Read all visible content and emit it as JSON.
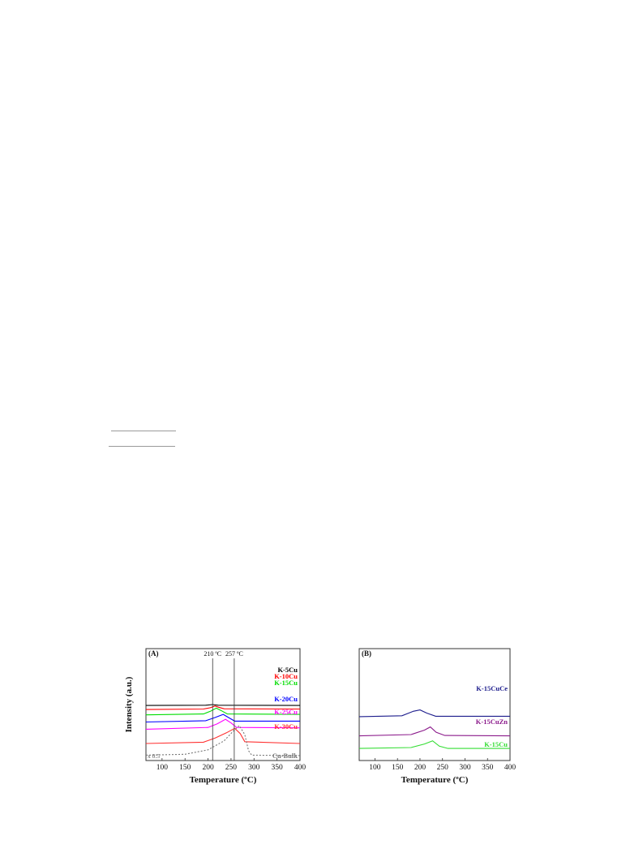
{
  "chart_data": [
    {
      "type": "line",
      "title": "",
      "panel_label": "(A)",
      "xlabel": "Temperature (ºC)",
      "ylabel": "Intensity (a.u.)",
      "xlim": [
        65,
        400
      ],
      "xticks": [
        100,
        150,
        200,
        250,
        300,
        350,
        400
      ],
      "yticks": "none",
      "grid": false,
      "legend": "labels-right",
      "annotations": [
        {
          "text": "210 ºC",
          "x": 210
        },
        {
          "text": "257 ºC",
          "x": 257
        },
        {
          "text": "x 0.5",
          "position": "bottom-left"
        }
      ],
      "series": [
        {
          "name": "K-5Cu",
          "color": "#000000",
          "style": "solid",
          "points": [
            [
              65,
              127
            ],
            [
              195,
              126.5
            ],
            [
              210,
              125
            ],
            [
              222,
              126.5
            ],
            [
              400,
              127
            ]
          ]
        },
        {
          "name": "K-10Cu",
          "color": "#ff0000",
          "style": "solid",
          "points": [
            [
              65,
              136
            ],
            [
              190,
              135
            ],
            [
              205,
              132
            ],
            [
              215,
              128
            ],
            [
              223,
              131
            ],
            [
              235,
              134.5
            ],
            [
              400,
              135
            ]
          ]
        },
        {
          "name": "K-15Cu",
          "color": "#00dd00",
          "style": "solid",
          "points": [
            [
              65,
              148
            ],
            [
              190,
              146
            ],
            [
              205,
              140
            ],
            [
              218,
              133
            ],
            [
              228,
              138
            ],
            [
              242,
              146
            ],
            [
              400,
              147
            ]
          ]
        },
        {
          "name": "K-20Cu",
          "color": "#0000ff",
          "style": "solid",
          "points": [
            [
              65,
              164
            ],
            [
              195,
              161
            ],
            [
              215,
              154
            ],
            [
              233,
              147
            ],
            [
              248,
              156
            ],
            [
              258,
              162
            ],
            [
              400,
              162
            ]
          ]
        },
        {
          "name": "K-25Cu",
          "color": "#ff00ff",
          "style": "solid",
          "points": [
            [
              65,
              180
            ],
            [
              200,
              176
            ],
            [
              220,
              168
            ],
            [
              238,
              158
            ],
            [
              250,
              166
            ],
            [
              262,
              176
            ],
            [
              400,
              177
            ]
          ]
        },
        {
          "name": "K-30Cu",
          "color": "#ff3030",
          "style": "solid",
          "points": [
            [
              65,
              212
            ],
            [
              190,
              209
            ],
            [
              215,
              200
            ],
            [
              240,
              188
            ],
            [
              258,
              178
            ],
            [
              270,
              190
            ],
            [
              280,
              208
            ],
            [
              400,
              212
            ]
          ]
        },
        {
          "name": "Cu-Bulk",
          "color": "#777777",
          "style": "dotted",
          "points": [
            [
              65,
              238
            ],
            [
              150,
              236
            ],
            [
              200,
              226
            ],
            [
              235,
              206
            ],
            [
              255,
              184
            ],
            [
              268,
              172
            ],
            [
              280,
              192
            ],
            [
              288,
              228
            ],
            [
              295,
              238
            ],
            [
              400,
              239
            ]
          ]
        }
      ]
    },
    {
      "type": "line",
      "title": "",
      "panel_label": "(B)",
      "xlabel": "Temperature (ºC)",
      "ylabel": "",
      "xlim": [
        65,
        400
      ],
      "xticks": [
        100,
        150,
        200,
        250,
        300,
        350,
        400
      ],
      "yticks": "none",
      "grid": false,
      "legend": "labels-right",
      "series": [
        {
          "name": "K-15CuCe",
          "color": "#1c1c8c",
          "style": "solid",
          "points": [
            [
              65,
              152
            ],
            [
              160,
              150
            ],
            [
              185,
              140
            ],
            [
              200,
              137
            ],
            [
              215,
              144
            ],
            [
              235,
              151
            ],
            [
              400,
              151
            ]
          ]
        },
        {
          "name": "K-15CuZn",
          "color": "#8b1a8b",
          "style": "solid",
          "points": [
            [
              65,
              195
            ],
            [
              180,
              192
            ],
            [
              210,
              182
            ],
            [
              223,
              175
            ],
            [
              236,
              187
            ],
            [
              255,
              194
            ],
            [
              400,
              195
            ]
          ]
        },
        {
          "name": "K-15Cu",
          "color": "#33dd33",
          "style": "solid",
          "points": [
            [
              65,
              223
            ],
            [
              180,
              221
            ],
            [
              210,
              213
            ],
            [
              228,
              206
            ],
            [
              243,
              218
            ],
            [
              262,
              223
            ],
            [
              400,
              223
            ]
          ]
        }
      ]
    }
  ]
}
